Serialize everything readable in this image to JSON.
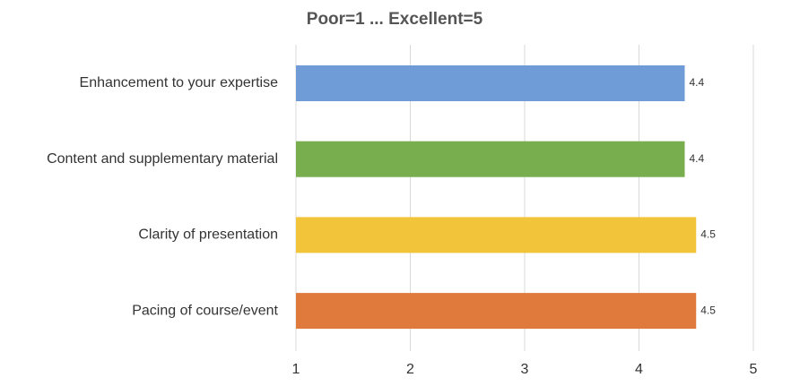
{
  "chart_data": {
    "type": "bar",
    "orientation": "horizontal",
    "title": "Poor=1 ... Excellent=5",
    "categories": [
      "Enhancement to your expertise",
      "Content and supplementary material",
      "Clarity of presentation",
      "Pacing of course/event"
    ],
    "values": [
      4.4,
      4.4,
      4.5,
      4.5
    ],
    "colors": [
      "#6f9bd6",
      "#78ae4e",
      "#f1c43a",
      "#df7a3c"
    ],
    "xlim": [
      1,
      5
    ],
    "xticks": [
      1,
      2,
      3,
      4,
      5
    ],
    "grid": true
  }
}
